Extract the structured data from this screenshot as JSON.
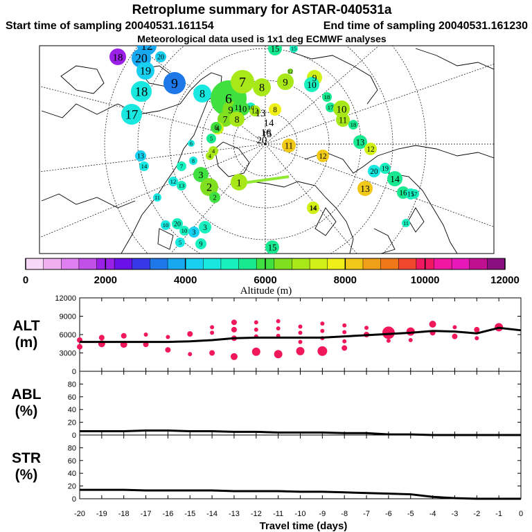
{
  "chart_data": {
    "type": "scatter",
    "title": "Retroplume summary for ASTAR-040531a",
    "subtitle_start": "Start time of sampling 20040531.161154",
    "subtitle_end": "End time of sampling 20040531.161230",
    "subtitle_met": "Meteorological data used is 1x1 deg ECMWF analyses",
    "colorbar": {
      "label": "Altitude (m)",
      "range": [
        0,
        12000
      ],
      "ticks": [
        "0",
        "2000",
        "4000",
        "6000",
        "8000",
        "10000",
        "12000"
      ],
      "colors": [
        "#f8d8f8",
        "#f0b0f0",
        "#e080f0",
        "#c050e8",
        "#9a20e8",
        "#6a10e8",
        "#3838e8",
        "#1e78e8",
        "#18a8f0",
        "#18d0f0",
        "#18e8e0",
        "#18f0c0",
        "#18e890",
        "#40e040",
        "#80e020",
        "#a8e818",
        "#d0f018",
        "#f0f018",
        "#f0c818",
        "#f0a018",
        "#f07818",
        "#f04830",
        "#f01860",
        "#f018a0",
        "#e818b8",
        "#c01090",
        "#8a1080"
      ]
    },
    "map_points": [
      {
        "label": "18",
        "alt": 2200,
        "r": 12
      },
      {
        "label": "12",
        "alt": 3700,
        "r": 14
      },
      {
        "label": "20",
        "alt": 3900,
        "r": 14
      },
      {
        "label": "20",
        "alt": 4000,
        "r": 8
      },
      {
        "label": "19",
        "alt": 4300,
        "r": 13
      },
      {
        "label": "9",
        "alt": 3500,
        "r": 16
      },
      {
        "label": "18",
        "alt": 4700,
        "r": 15
      },
      {
        "label": "17",
        "alt": 4700,
        "r": 15
      },
      {
        "label": "8",
        "alt": 4500,
        "r": 13
      },
      {
        "label": "6",
        "alt": 6200,
        "r": 26
      },
      {
        "label": "7",
        "alt": 6900,
        "r": 17
      },
      {
        "label": "9",
        "alt": 6300,
        "r": 12
      },
      {
        "label": "8",
        "alt": 6800,
        "r": 13
      },
      {
        "label": "9",
        "alt": 6900,
        "r": 12
      },
      {
        "label": "10",
        "alt": 5000,
        "r": 7
      },
      {
        "label": "10",
        "alt": 6200,
        "r": 10
      },
      {
        "label": "11",
        "alt": 6100,
        "r": 9
      },
      {
        "label": "12",
        "alt": 6800,
        "r": 8
      },
      {
        "label": "8",
        "alt": 7700,
        "r": 9
      },
      {
        "label": "7",
        "alt": 6500,
        "r": 11
      },
      {
        "label": "8",
        "alt": 6700,
        "r": 11
      },
      {
        "label": "4",
        "alt": 7200,
        "r": 9
      },
      {
        "label": "6",
        "alt": 5800,
        "r": 8
      },
      {
        "label": "5",
        "alt": 5700,
        "r": 7
      },
      {
        "label": "4",
        "alt": 7000,
        "r": 7
      },
      {
        "label": "4",
        "alt": 6800,
        "r": 6
      },
      {
        "label": "6",
        "alt": 4500,
        "r": 5
      },
      {
        "label": "8",
        "alt": 4600,
        "r": 6
      },
      {
        "label": "7",
        "alt": 5200,
        "r": 7
      },
      {
        "label": "3",
        "alt": 5800,
        "r": 11
      },
      {
        "label": "2",
        "alt": 6300,
        "r": 13
      },
      {
        "label": "2",
        "alt": 6000,
        "r": 8
      },
      {
        "label": "1",
        "alt": 6700,
        "r": 12
      },
      {
        "label": "3",
        "alt": 4000,
        "r": 8
      },
      {
        "label": "13",
        "alt": 4400,
        "r": 8
      },
      {
        "label": "14",
        "alt": 4700,
        "r": 7
      },
      {
        "label": "12",
        "alt": 4800,
        "r": 7
      },
      {
        "label": "13",
        "alt": 4900,
        "r": 7
      },
      {
        "label": "11",
        "alt": 4800,
        "r": 6
      },
      {
        "label": "10",
        "alt": 4800,
        "r": 7
      },
      {
        "label": "20",
        "alt": 5100,
        "r": 8
      },
      {
        "label": "10",
        "alt": 4900,
        "r": 7
      },
      {
        "label": "3",
        "alt": 5000,
        "r": 9
      },
      {
        "label": "5",
        "alt": 4600,
        "r": 7
      },
      {
        "label": "9",
        "alt": 5200,
        "r": 8
      },
      {
        "label": "15",
        "alt": 5400,
        "r": 10
      },
      {
        "label": "14",
        "alt": 5100,
        "r": 6
      },
      {
        "label": "15",
        "alt": 5300,
        "r": 6
      },
      {
        "label": "12",
        "alt": 6500,
        "r": 4
      },
      {
        "label": "9",
        "alt": 7200,
        "r": 11
      },
      {
        "label": "10",
        "alt": 5300,
        "r": 11
      },
      {
        "label": "18",
        "alt": 5400,
        "r": 7
      },
      {
        "label": "17",
        "alt": 5500,
        "r": 7
      },
      {
        "label": "10",
        "alt": 6900,
        "r": 12
      },
      {
        "label": "11",
        "alt": 6700,
        "r": 10
      },
      {
        "label": "18",
        "alt": 5500,
        "r": 7
      },
      {
        "label": "13",
        "alt": 5400,
        "r": 10
      },
      {
        "label": "12",
        "alt": 7500,
        "r": 9
      },
      {
        "label": "11",
        "alt": 8200,
        "r": 10
      },
      {
        "label": "12",
        "alt": 8400,
        "r": 9
      },
      {
        "label": "20",
        "alt": 4800,
        "r": 9
      },
      {
        "label": "19",
        "alt": 5000,
        "r": 8
      },
      {
        "label": "14",
        "alt": 5600,
        "r": 11
      },
      {
        "label": "16",
        "alt": 5500,
        "r": 9
      },
      {
        "label": "15",
        "alt": 5000,
        "r": 8
      },
      {
        "label": "17",
        "alt": 4900,
        "r": 7
      },
      {
        "label": "13",
        "alt": 8400,
        "r": 11
      },
      {
        "label": "14",
        "alt": 7300,
        "r": 9
      },
      {
        "label": "11",
        "alt": 4900,
        "r": 6
      },
      {
        "label": "15",
        "alt": 5400,
        "r": 10
      }
    ],
    "center_labels": [
      {
        "label": "13"
      },
      {
        "label": "14"
      },
      {
        "label": "15"
      },
      {
        "label": "16"
      },
      {
        "label": "20"
      }
    ],
    "time_axis": {
      "xlabel": "Travel time (days)",
      "xlim": [
        -20,
        0
      ],
      "ticks": [
        "-20",
        "-19",
        "-18",
        "-17",
        "-16",
        "-15",
        "-14",
        "-13",
        "-12",
        "-11",
        "-10",
        "-9",
        "-8",
        "-7",
        "-6",
        "-5",
        "-4",
        "-3",
        "-2",
        "-1",
        "0"
      ]
    },
    "panels": [
      {
        "label_line1": "ALT",
        "label_line2": "(m)",
        "ylim": [
          0,
          12000
        ],
        "yticks": [
          "0",
          "3000",
          "6000",
          "9000",
          "12000"
        ],
        "line_x": [
          -20,
          -19,
          -18,
          -17,
          -16,
          -15,
          -14,
          -13,
          -12,
          -11,
          -10,
          -9,
          -8,
          -7,
          -6,
          -5,
          -4,
          -3,
          -2,
          -1,
          0
        ],
        "line_y": [
          4800,
          4800,
          4800,
          4800,
          4800,
          4900,
          5100,
          5400,
          5500,
          5500,
          5500,
          5500,
          5700,
          5900,
          6100,
          6300,
          6600,
          6500,
          6200,
          7100,
          6700
        ],
        "dots": [
          {
            "x": -20,
            "y": 5100,
            "s": 4
          },
          {
            "x": -20,
            "y": 4000,
            "s": 4
          },
          {
            "x": -19,
            "y": 5500,
            "s": 4
          },
          {
            "x": -19,
            "y": 4500,
            "s": 5
          },
          {
            "x": -18,
            "y": 5800,
            "s": 4
          },
          {
            "x": -18,
            "y": 4400,
            "s": 5
          },
          {
            "x": -17,
            "y": 6000,
            "s": 3
          },
          {
            "x": -17,
            "y": 4400,
            "s": 4
          },
          {
            "x": -16,
            "y": 5600,
            "s": 3
          },
          {
            "x": -16,
            "y": 3500,
            "s": 4
          },
          {
            "x": -15,
            "y": 6100,
            "s": 4
          },
          {
            "x": -15,
            "y": 2800,
            "s": 3
          },
          {
            "x": -14,
            "y": 7200,
            "s": 3
          },
          {
            "x": -14,
            "y": 6300,
            "s": 3
          },
          {
            "x": -14,
            "y": 3000,
            "s": 4
          },
          {
            "x": -13,
            "y": 8000,
            "s": 4
          },
          {
            "x": -13,
            "y": 6800,
            "s": 4
          },
          {
            "x": -13,
            "y": 5400,
            "s": 4
          },
          {
            "x": -13,
            "y": 2400,
            "s": 5
          },
          {
            "x": -12,
            "y": 8000,
            "s": 3
          },
          {
            "x": -12,
            "y": 6800,
            "s": 3
          },
          {
            "x": -12,
            "y": 5700,
            "s": 3
          },
          {
            "x": -12,
            "y": 3200,
            "s": 6
          },
          {
            "x": -11,
            "y": 8200,
            "s": 3
          },
          {
            "x": -11,
            "y": 7000,
            "s": 3
          },
          {
            "x": -11,
            "y": 5800,
            "s": 3
          },
          {
            "x": -11,
            "y": 2800,
            "s": 6
          },
          {
            "x": -10,
            "y": 7300,
            "s": 3
          },
          {
            "x": -10,
            "y": 6300,
            "s": 3
          },
          {
            "x": -10,
            "y": 4800,
            "s": 3
          },
          {
            "x": -10,
            "y": 3300,
            "s": 6
          },
          {
            "x": -9,
            "y": 7800,
            "s": 3
          },
          {
            "x": -9,
            "y": 6600,
            "s": 3
          },
          {
            "x": -9,
            "y": 5400,
            "s": 3
          },
          {
            "x": -9,
            "y": 3300,
            "s": 7
          },
          {
            "x": -8,
            "y": 7500,
            "s": 3
          },
          {
            "x": -8,
            "y": 6400,
            "s": 3
          },
          {
            "x": -8,
            "y": 4900,
            "s": 3
          },
          {
            "x": -8,
            "y": 3800,
            "s": 4
          },
          {
            "x": -7,
            "y": 7100,
            "s": 3
          },
          {
            "x": -7,
            "y": 6000,
            "s": 4
          },
          {
            "x": -6,
            "y": 6300,
            "s": 9
          },
          {
            "x": -6,
            "y": 5000,
            "s": 3
          },
          {
            "x": -5,
            "y": 6500,
            "s": 6
          },
          {
            "x": -5,
            "y": 5100,
            "s": 3
          },
          {
            "x": -4,
            "y": 7700,
            "s": 5
          },
          {
            "x": -4,
            "y": 6300,
            "s": 4
          },
          {
            "x": -3,
            "y": 7200,
            "s": 3
          },
          {
            "x": -3,
            "y": 5700,
            "s": 4
          },
          {
            "x": -2,
            "y": 6800,
            "s": 4
          },
          {
            "x": -2,
            "y": 5400,
            "s": 3
          },
          {
            "x": -1,
            "y": 7200,
            "s": 6
          }
        ]
      },
      {
        "label_line1": "ABL",
        "label_line2": "(%)",
        "ylim": [
          0,
          100
        ],
        "yticks": [
          "0",
          "20",
          "40",
          "60",
          "80"
        ],
        "line_x": [
          -20,
          -19,
          -18,
          -17,
          -16,
          -15,
          -14,
          -13,
          -12,
          -11,
          -10,
          -9,
          -8,
          -7,
          -6,
          -5,
          -4,
          -3,
          -2,
          -1,
          0
        ],
        "line_y": [
          6,
          6,
          6,
          7,
          7,
          6,
          6,
          5,
          5,
          4,
          4,
          4,
          3,
          3,
          1,
          1,
          0,
          0,
          0,
          0,
          0
        ]
      },
      {
        "label_line1": "STR",
        "label_line2": "(%)",
        "ylim": [
          0,
          100
        ],
        "yticks": [
          "0",
          "20",
          "40",
          "60",
          "80"
        ],
        "line_x": [
          -20,
          -19,
          -18,
          -17,
          -16,
          -15,
          -14,
          -13,
          -12,
          -11,
          -10,
          -9,
          -8,
          -7,
          -6,
          -5,
          -4,
          -3,
          -2,
          -1,
          0
        ],
        "line_y": [
          14,
          14,
          14,
          13,
          13,
          13,
          13,
          12,
          12,
          12,
          11,
          11,
          10,
          9,
          8,
          7,
          3,
          1,
          0,
          0,
          0
        ]
      }
    ]
  }
}
